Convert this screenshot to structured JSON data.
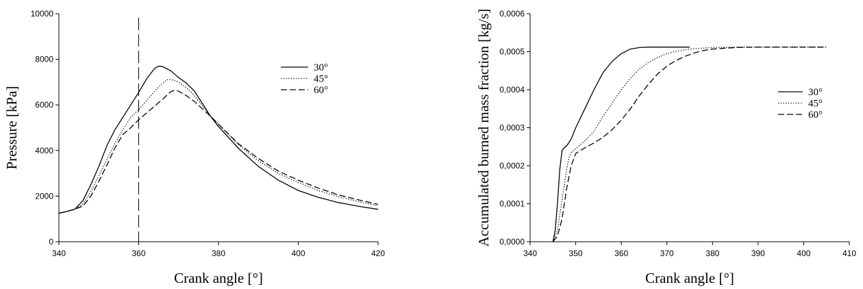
{
  "chart_data": [
    {
      "type": "line",
      "xlabel": "Crank angle [°]",
      "ylabel": "Pressure [kPa]",
      "xlim": [
        340,
        420
      ],
      "ylim": [
        0,
        10000
      ],
      "xticks": [
        "340",
        "360",
        "380",
        "400",
        "420"
      ],
      "yticks": [
        "0",
        "2000",
        "4000",
        "6000",
        "8000",
        "10000"
      ],
      "xtick_values": [
        340,
        360,
        380,
        400,
        420
      ],
      "ytick_values": [
        0,
        2000,
        4000,
        6000,
        8000,
        10000
      ],
      "reference_line": {
        "x": 360,
        "style": "long-dash vertical"
      },
      "legend_position": "top-right",
      "series": [
        {
          "name": "30°",
          "style": "solid",
          "x": [
            340,
            342,
            344,
            346,
            348,
            350,
            352,
            354,
            356,
            358,
            360,
            362,
            364,
            365,
            366,
            368,
            370,
            372,
            374,
            376,
            378,
            380,
            385,
            390,
            395,
            400,
            405,
            410,
            415,
            420
          ],
          "y": [
            1250,
            1330,
            1430,
            1800,
            2500,
            3300,
            4200,
            4900,
            5450,
            6000,
            6550,
            7150,
            7600,
            7700,
            7680,
            7500,
            7200,
            6950,
            6600,
            6050,
            5500,
            5050,
            4100,
            3300,
            2700,
            2250,
            1950,
            1720,
            1560,
            1420
          ]
        },
        {
          "name": "45°",
          "style": "dotted",
          "x": [
            340,
            342,
            344,
            346,
            348,
            350,
            352,
            354,
            356,
            358,
            360,
            362,
            364,
            366,
            367,
            368,
            370,
            372,
            374,
            376,
            378,
            380,
            385,
            390,
            395,
            400,
            405,
            410,
            415,
            420
          ],
          "y": [
            1250,
            1330,
            1430,
            1650,
            2200,
            2900,
            3600,
            4300,
            4900,
            5450,
            5800,
            6200,
            6600,
            6950,
            7100,
            7120,
            7000,
            6750,
            6400,
            5950,
            5500,
            5150,
            4250,
            3550,
            3000,
            2600,
            2250,
            1980,
            1760,
            1580
          ]
        },
        {
          "name": "60°",
          "style": "dashed",
          "x": [
            340,
            342,
            344,
            346,
            348,
            350,
            352,
            354,
            356,
            358,
            360,
            362,
            364,
            366,
            368,
            369,
            370,
            372,
            374,
            376,
            378,
            380,
            385,
            390,
            395,
            400,
            405,
            410,
            415,
            420
          ],
          "y": [
            1250,
            1330,
            1430,
            1560,
            2000,
            2650,
            3350,
            4100,
            4700,
            5000,
            5350,
            5650,
            5950,
            6250,
            6580,
            6640,
            6600,
            6400,
            6150,
            5820,
            5500,
            5150,
            4300,
            3650,
            3100,
            2700,
            2350,
            2060,
            1840,
            1640
          ]
        }
      ]
    },
    {
      "type": "line",
      "xlabel": "Crank angle [°]",
      "ylabel": "Accumulated burned mass fraction [kg/s]",
      "xlim": [
        340,
        410
      ],
      "ylim": [
        0,
        0.0006
      ],
      "xticks": [
        "340",
        "350",
        "360",
        "370",
        "380",
        "390",
        "400",
        "410"
      ],
      "yticks": [
        "0,0000",
        "0,0001",
        "0,0002",
        "0,0003",
        "0,0004",
        "0,0005",
        "0,0006"
      ],
      "xtick_values": [
        340,
        350,
        360,
        370,
        380,
        390,
        400,
        410
      ],
      "ytick_values": [
        0,
        0.0001,
        0.0002,
        0.0003,
        0.0004,
        0.0005,
        0.0006
      ],
      "legend_position": "right",
      "series": [
        {
          "name": "30°",
          "style": "solid",
          "x": [
            345,
            345.5,
            346,
            346.5,
            347,
            347.5,
            348,
            349,
            350,
            352,
            354,
            356,
            358,
            360,
            362,
            364,
            366,
            368,
            370,
            375
          ],
          "y": [
            0,
            3e-05,
            0.0001,
            0.00019,
            0.00024,
            0.000248,
            0.000252,
            0.00027,
            0.0003,
            0.00035,
            0.0004,
            0.000445,
            0.000475,
            0.000495,
            0.000507,
            0.000511,
            0.000512,
            0.000512,
            0.000512,
            0.000512
          ]
        },
        {
          "name": "45°",
          "style": "dotted",
          "x": [
            345,
            346,
            347,
            348,
            348.5,
            349,
            350,
            352,
            354,
            356,
            358,
            360,
            362,
            364,
            366,
            368,
            370,
            372,
            375,
            380,
            385,
            390,
            395,
            400,
            405
          ],
          "y": [
            0,
            3e-05,
            0.00011,
            0.00019,
            0.00022,
            0.000235,
            0.000245,
            0.000265,
            0.00029,
            0.00033,
            0.000365,
            0.0004,
            0.00043,
            0.000455,
            0.000472,
            0.000485,
            0.000495,
            0.000501,
            0.000507,
            0.000511,
            0.000512,
            0.000512,
            0.000512,
            0.000512,
            0.000512
          ]
        },
        {
          "name": "60°",
          "style": "dashed",
          "x": [
            345,
            346,
            347,
            348,
            349,
            350,
            351,
            352,
            354,
            356,
            358,
            360,
            362,
            364,
            366,
            368,
            370,
            372,
            374,
            376,
            378,
            380,
            385,
            390,
            395,
            400,
            405
          ],
          "y": [
            0,
            1.5e-05,
            6e-05,
            0.00014,
            0.0002,
            0.000232,
            0.00024,
            0.000247,
            0.00026,
            0.000275,
            0.000295,
            0.00032,
            0.00035,
            0.000385,
            0.000415,
            0.000442,
            0.000462,
            0.000477,
            0.000488,
            0.000497,
            0.000503,
            0.000507,
            0.000511,
            0.000512,
            0.000512,
            0.000512,
            0.000512
          ]
        }
      ]
    }
  ]
}
